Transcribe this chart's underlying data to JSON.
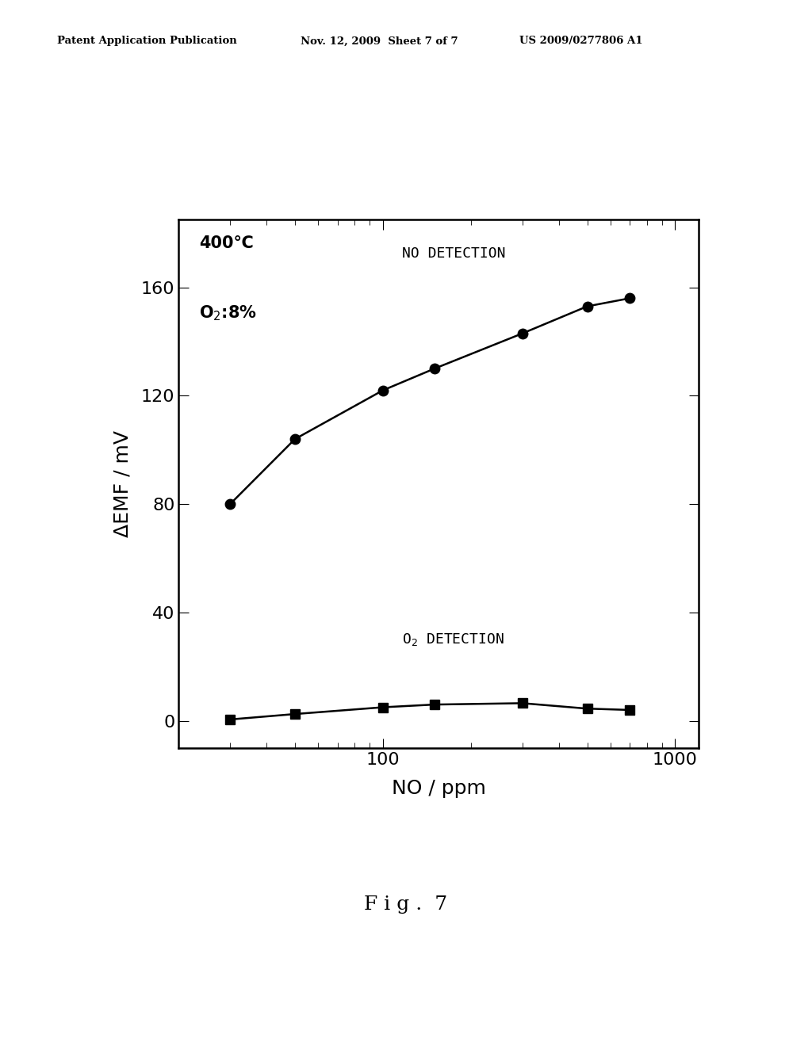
{
  "no_detection_x": [
    30,
    50,
    100,
    150,
    300,
    500,
    700
  ],
  "no_detection_y": [
    80,
    104,
    122,
    130,
    143,
    153,
    156
  ],
  "o2_detection_x": [
    30,
    50,
    100,
    150,
    300,
    500,
    700
  ],
  "o2_detection_y": [
    0.5,
    2.5,
    5.0,
    6.0,
    6.5,
    4.5,
    4.0
  ],
  "xlabel": "NO / ppm",
  "ylabel": "ΔEMF / mV",
  "xlim_log": [
    20,
    1200
  ],
  "ylim": [
    -10,
    185
  ],
  "yticks": [
    0,
    40,
    80,
    120,
    160
  ],
  "annotation_no": "NO DETECTION",
  "annotation_o2": "O$_2$ DETECTION",
  "label_temp": "400℃",
  "label_o2": "O$_2$:8%",
  "fig_label": "F i g .  7",
  "header_left": "Patent Application Publication",
  "header_mid": "Nov. 12, 2009  Sheet 7 of 7",
  "header_right": "US 2009/0277806 A1",
  "background_color": "#ffffff",
  "line_color": "#000000",
  "marker_color": "#000000"
}
